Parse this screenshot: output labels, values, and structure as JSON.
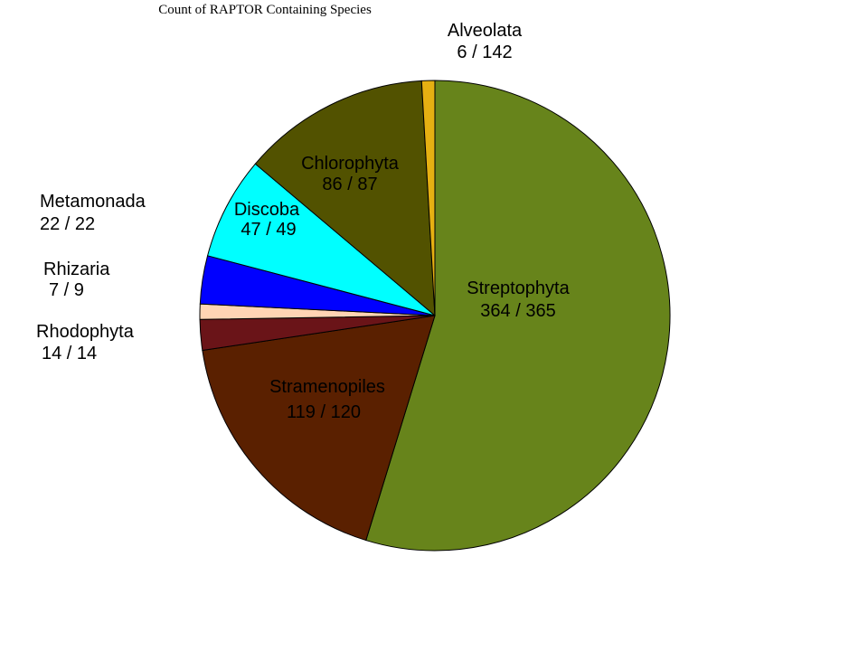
{
  "chart_data": {
    "type": "pie",
    "title": "Count of RAPTOR Containing Species",
    "slices": [
      {
        "name": "Streptophyta",
        "value": 364,
        "label": "364 / 365",
        "color": "#67841b"
      },
      {
        "name": "Stramenopiles",
        "value": 119,
        "label": "119 / 120",
        "color": "#5a2000"
      },
      {
        "name": "Rhodophyta",
        "value": 14,
        "label": "14 / 14",
        "color": "#6a1418"
      },
      {
        "name": "Rhizaria",
        "value": 7,
        "label": "7 / 9",
        "color": "#ffd4b4"
      },
      {
        "name": "Metamonada",
        "value": 22,
        "label": "22 / 22",
        "color": "#0000ff"
      },
      {
        "name": "Discoba",
        "value": 47,
        "label": "47 / 49",
        "color": "#00ffff"
      },
      {
        "name": "Chlorophyta",
        "value": 86,
        "label": "86 / 87",
        "color": "#525200"
      },
      {
        "name": "Alveolata",
        "value": 6,
        "label": "6 / 142",
        "color": "#e6b012"
      }
    ]
  }
}
